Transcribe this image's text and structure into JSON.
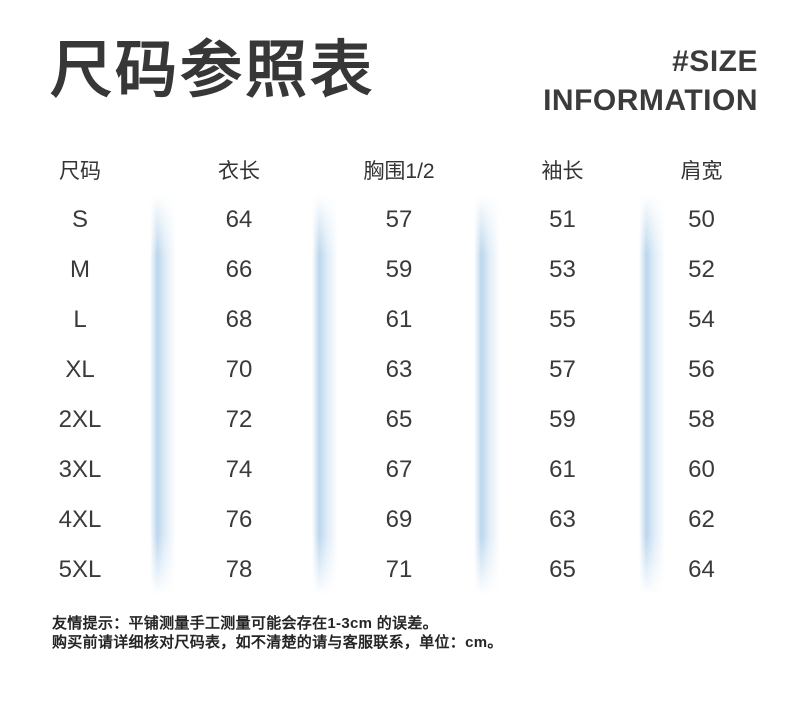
{
  "header": {
    "tag_line1": "#SIZE",
    "tag_line2": "INFORMATION"
  },
  "chart_data": {
    "type": "table",
    "title": "尺码参照表",
    "columns": [
      "尺码",
      "衣长",
      "胸围1/2",
      "袖长",
      "肩宽"
    ],
    "rows": [
      {
        "size": "S",
        "values": [
          64,
          57,
          51,
          50
        ]
      },
      {
        "size": "M",
        "values": [
          66,
          59,
          53,
          52
        ]
      },
      {
        "size": "L",
        "values": [
          68,
          61,
          55,
          54
        ]
      },
      {
        "size": "XL",
        "values": [
          70,
          63,
          57,
          56
        ]
      },
      {
        "size": "2XL",
        "values": [
          72,
          65,
          59,
          58
        ]
      },
      {
        "size": "3XL",
        "values": [
          74,
          67,
          61,
          60
        ]
      },
      {
        "size": "4XL",
        "values": [
          76,
          69,
          63,
          62
        ]
      },
      {
        "size": "5XL",
        "values": [
          78,
          71,
          65,
          64
        ]
      }
    ]
  },
  "footer": {
    "note_line1": "友情提示：平铺测量手工测量可能会存在1-3cm 的误差。",
    "note_line2": "购买前请详细核对尺码表，如不清楚的请与客服联系，单位：cm。"
  },
  "colors": {
    "divider_blue": "#b7d4ec",
    "title_text": "#373737",
    "body_text": "#333333"
  }
}
